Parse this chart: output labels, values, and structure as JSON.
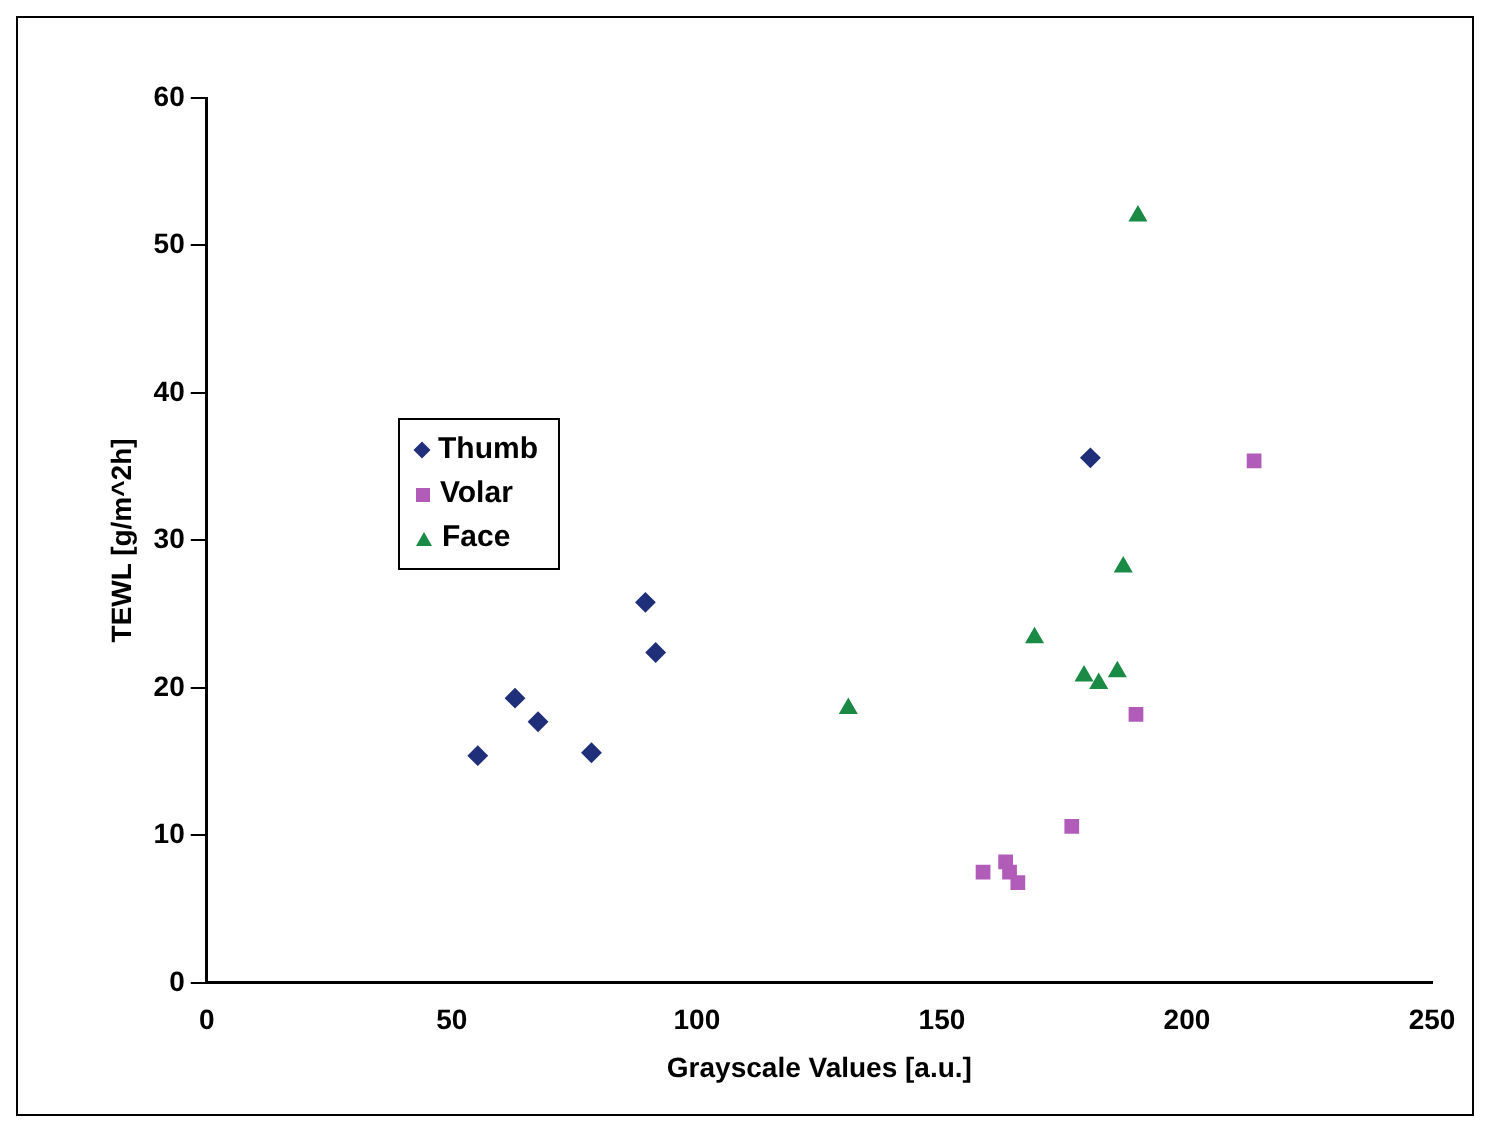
{
  "chart_data": {
    "type": "scatter",
    "xlabel": "Grayscale Values [a.u.]",
    "ylabel": "TEWL [g/m^2h]",
    "xlim": [
      0,
      250
    ],
    "xticks": [
      0,
      50,
      100,
      150,
      200,
      250
    ],
    "ylim": [
      0,
      60
    ],
    "yticks": [
      0,
      10,
      20,
      30,
      40,
      50,
      60
    ],
    "grid": false,
    "legend": "left",
    "series": [
      {
        "name": "Thumb",
        "color": "#1f2f7a",
        "marker": "diamond",
        "x": [
          55.3,
          62.9,
          67.6,
          78.5,
          89.5,
          91.6,
          180.3
        ],
        "values": [
          15.4,
          19.3,
          17.7,
          15.6,
          25.8,
          22.4,
          35.6
        ]
      },
      {
        "name": "Volar",
        "color": "#b05cb8",
        "marker": "square",
        "x": [
          158.4,
          163,
          163.8,
          165.5,
          176.5,
          189.6,
          213.7
        ],
        "values": [
          7.5,
          8.2,
          7.5,
          6.8,
          10.6,
          18.2,
          35.4
        ]
      },
      {
        "name": "Face",
        "color": "#1a8a45",
        "marker": "triangle",
        "x": [
          130.9,
          168.9,
          179,
          182,
          185.8,
          187,
          190
        ],
        "values": [
          18.6,
          23.4,
          20.8,
          20.3,
          21.1,
          28.2,
          52
        ]
      }
    ]
  }
}
